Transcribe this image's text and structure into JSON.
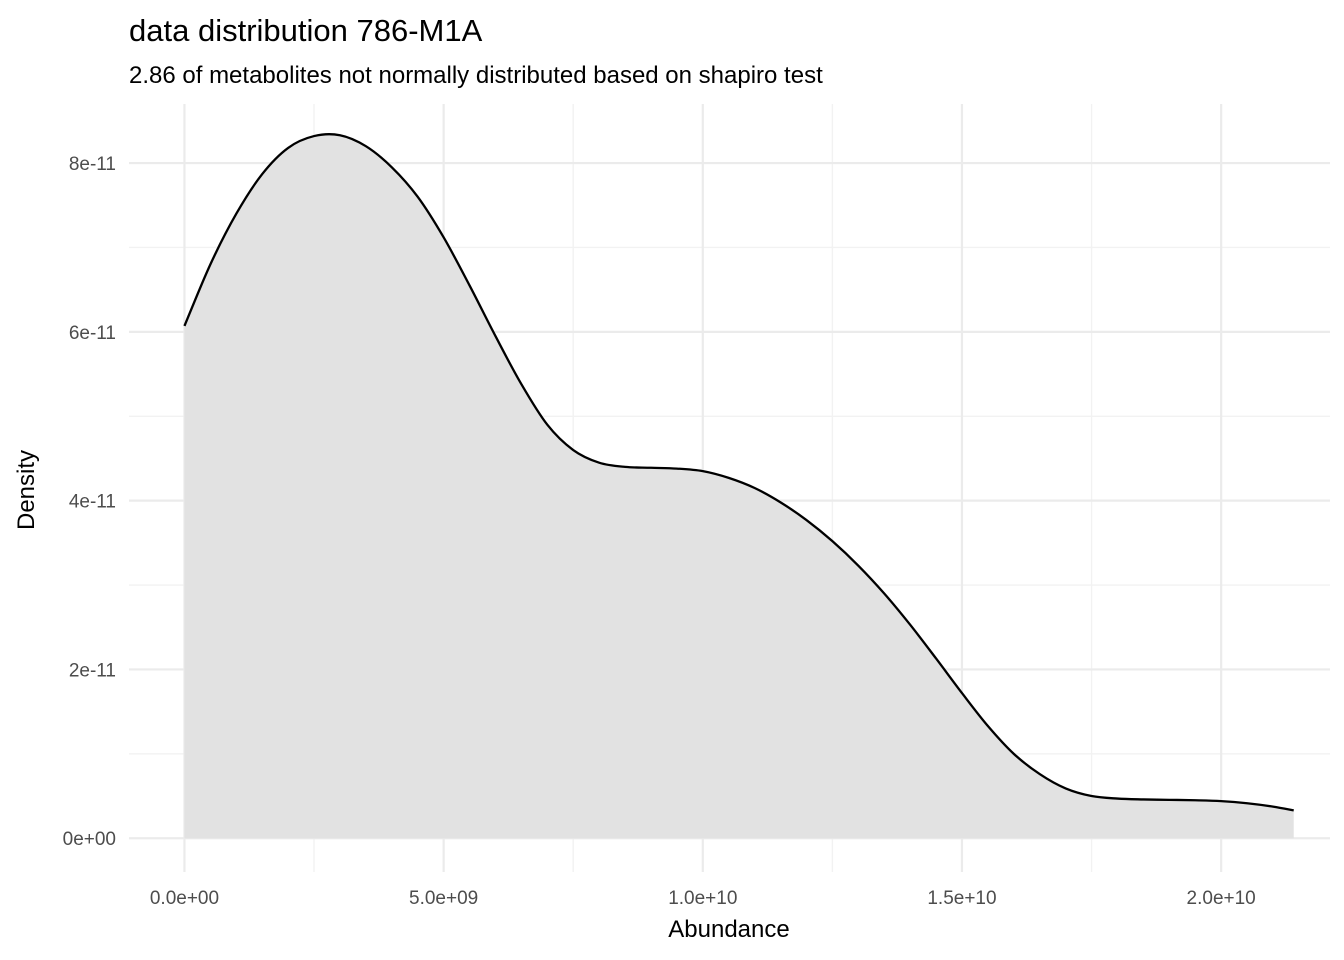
{
  "chart_data": {
    "type": "area",
    "title": "data distribution  786-M1A",
    "subtitle": "2.86  of metabolites not normally distributed based on  shapiro test",
    "xlabel": "Abundance",
    "ylabel": "Density",
    "xlim": [
      -1070000000.0,
      22100000000.0
    ],
    "ylim": [
      -4e-12,
      8.7e-11
    ],
    "x_ticks": [
      0,
      5000000000.0,
      10000000000.0,
      15000000000.0,
      20000000000.0
    ],
    "x_tick_labels": [
      "0.0e+00",
      "5.0e+09",
      "1.0e+10",
      "1.5e+10",
      "2.0e+10"
    ],
    "x_minor_ticks": [
      2500000000.0,
      7500000000.0,
      12500000000.0,
      17500000000.0
    ],
    "y_ticks": [
      0,
      2e-11,
      4e-11,
      6e-11,
      8e-11
    ],
    "y_tick_labels": [
      "0e+00",
      "2e-11",
      "4e-11",
      "6e-11",
      "8e-11"
    ],
    "y_minor_ticks": [
      1e-11,
      3e-11,
      5e-11,
      7e-11
    ],
    "grid": true,
    "legend": "none",
    "fill_color": "#e2e2e2",
    "line_color": "#000000",
    "x": [
      0,
      500000000.0,
      1000000000.0,
      1500000000.0,
      2000000000.0,
      2500000000.0,
      3000000000.0,
      3500000000.0,
      4000000000.0,
      4500000000.0,
      5000000000.0,
      5500000000.0,
      6000000000.0,
      6500000000.0,
      7000000000.0,
      7500000000.0,
      8000000000.0,
      8500000000.0,
      9000000000.0,
      9500000000.0,
      10000000000.0,
      10500000000.0,
      11000000000.0,
      11500000000.0,
      12000000000.0,
      12500000000.0,
      13000000000.0,
      13500000000.0,
      14000000000.0,
      14500000000.0,
      15000000000.0,
      15500000000.0,
      16000000000.0,
      16500000000.0,
      17000000000.0,
      17500000000.0,
      18000000000.0,
      18500000000.0,
      19000000000.0,
      19500000000.0,
      20000000000.0,
      20500000000.0,
      21000000000.0,
      21400000000.0
    ],
    "y": [
      6.07e-11,
      6.8e-11,
      7.4e-11,
      7.87e-11,
      8.18e-11,
      8.32e-11,
      8.33e-11,
      8.2e-11,
      7.95e-11,
      7.6e-11,
      7.12e-11,
      6.55e-11,
      5.95e-11,
      5.38e-11,
      4.9e-11,
      4.6e-11,
      4.45e-11,
      4.4e-11,
      4.39e-11,
      4.38e-11,
      4.35e-11,
      4.27e-11,
      4.15e-11,
      3.98e-11,
      3.77e-11,
      3.52e-11,
      3.23e-11,
      2.9e-11,
      2.53e-11,
      2.13e-11,
      1.72e-11,
      1.33e-11,
      1e-11,
      7.6e-12,
      5.9e-12,
      5e-12,
      4.7e-12,
      4.6e-12,
      4.55e-12,
      4.5e-12,
      4.4e-12,
      4.15e-12,
      3.75e-12,
      3.3e-12
    ]
  }
}
